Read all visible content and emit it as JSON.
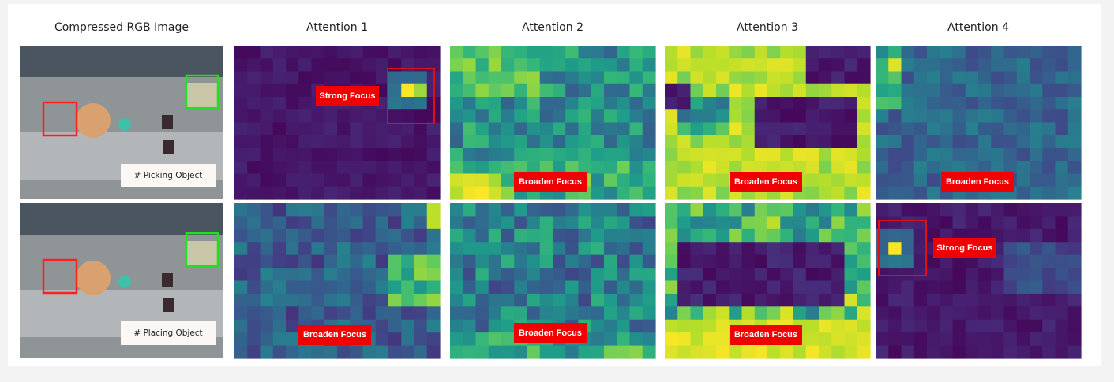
{
  "headers": [
    "Compressed RGB Image",
    "Attention 1",
    "Attention 2",
    "Attention 3",
    "Attention 4"
  ],
  "rows": [
    {
      "caption": "# Picking Object",
      "labels": [
        "Strong Focus",
        "Broaden Focus",
        "Broaden Focus",
        "Broaden Focus"
      ]
    },
    {
      "caption": "# Placing Object",
      "labels": [
        "Broaden Focus",
        "Broaden Focus",
        "Broaden Focus",
        "Strong Focus"
      ]
    }
  ]
}
